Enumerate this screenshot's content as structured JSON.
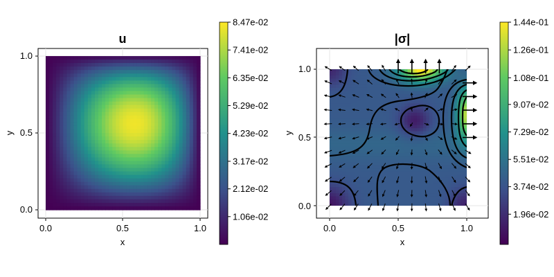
{
  "chart_data": [
    {
      "type": "heatmap",
      "title": "u",
      "xlabel": "x",
      "ylabel": "y",
      "xlim": [
        -0.05,
        1.05
      ],
      "ylim": [
        -0.05,
        1.05
      ],
      "x_ticks": [
        "0.0",
        "0.5",
        "1.0"
      ],
      "y_ticks": [
        "0.0",
        "0.5",
        "1.0"
      ],
      "grid": true,
      "field": "bump peaking near x=0.62, y=0.63, zero on the unit-square boundary",
      "colormap": [
        "#440154",
        "#3b528b",
        "#21918c",
        "#5ec962",
        "#fde725"
      ],
      "colorbar": {
        "range": [
          0.0,
          0.0847
        ],
        "ticks": [
          {
            "label": "1.06e-02",
            "value": 0.0106
          },
          {
            "label": "2.12e-02",
            "value": 0.0212
          },
          {
            "label": "3.17e-02",
            "value": 0.0317
          },
          {
            "label": "4.23e-02",
            "value": 0.0423
          },
          {
            "label": "5.29e-02",
            "value": 0.0529
          },
          {
            "label": "6.35e-02",
            "value": 0.0635
          },
          {
            "label": "7.41e-02",
            "value": 0.0741
          },
          {
            "label": "8.47e-02",
            "value": 0.0847
          }
        ]
      }
    },
    {
      "type": "heatmap",
      "title": "|σ|",
      "xlabel": "x",
      "ylabel": "y",
      "xlim": [
        -0.08,
        1.15
      ],
      "ylim": [
        -0.1,
        1.15
      ],
      "x_ticks": [
        "0.0",
        "0.5",
        "1.0"
      ],
      "y_ticks": [
        "0.0",
        "0.5",
        "1.0"
      ],
      "grid": true,
      "overlays": [
        "contour lines",
        "quiver arrows (flux vectors)"
      ],
      "colormap": [
        "#440154",
        "#3b528b",
        "#21918c",
        "#5ec962",
        "#fde725"
      ],
      "colorbar": {
        "range": [
          0.0,
          0.144
        ],
        "ticks": [
          {
            "label": "1.96e-02",
            "value": 0.0196
          },
          {
            "label": "3.74e-02",
            "value": 0.0374
          },
          {
            "label": "5.51e-02",
            "value": 0.0551
          },
          {
            "label": "7.29e-02",
            "value": 0.0729
          },
          {
            "label": "9.07e-02",
            "value": 0.0907
          },
          {
            "label": "1.08e-01",
            "value": 0.108
          },
          {
            "label": "1.26e-01",
            "value": 0.126
          },
          {
            "label": "1.44e-01",
            "value": 0.144
          }
        ]
      }
    }
  ]
}
